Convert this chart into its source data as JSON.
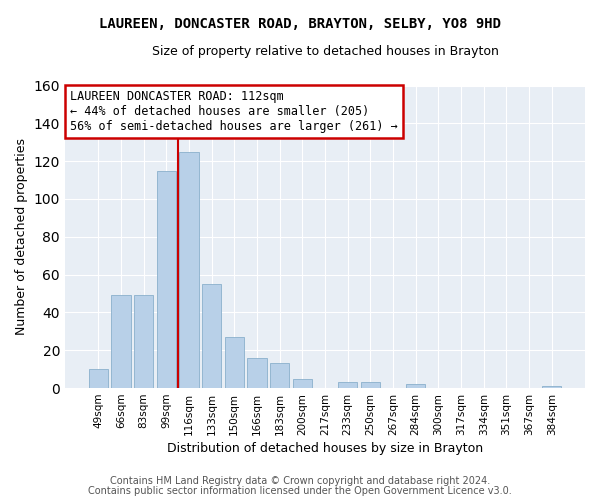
{
  "title": "LAUREEN, DONCASTER ROAD, BRAYTON, SELBY, YO8 9HD",
  "subtitle": "Size of property relative to detached houses in Brayton",
  "xlabel": "Distribution of detached houses by size in Brayton",
  "ylabel": "Number of detached properties",
  "bar_labels": [
    "49sqm",
    "66sqm",
    "83sqm",
    "99sqm",
    "116sqm",
    "133sqm",
    "150sqm",
    "166sqm",
    "183sqm",
    "200sqm",
    "217sqm",
    "233sqm",
    "250sqm",
    "267sqm",
    "284sqm",
    "300sqm",
    "317sqm",
    "334sqm",
    "351sqm",
    "367sqm",
    "384sqm"
  ],
  "bar_values": [
    10,
    49,
    49,
    115,
    125,
    55,
    27,
    16,
    13,
    5,
    0,
    3,
    3,
    0,
    2,
    0,
    0,
    0,
    0,
    0,
    1
  ],
  "bar_color": "#b8d0e8",
  "bar_edge_color": "#8ab0cc",
  "reference_line_x": 3.5,
  "reference_line_color": "#cc0000",
  "annotation_title": "LAUREEN DONCASTER ROAD: 112sqm",
  "annotation_line1": "← 44% of detached houses are smaller (205)",
  "annotation_line2": "56% of semi-detached houses are larger (261) →",
  "annotation_box_color": "#ffffff",
  "annotation_box_edge_color": "#cc0000",
  "ylim": [
    0,
    160
  ],
  "yticks": [
    0,
    20,
    40,
    60,
    80,
    100,
    120,
    140,
    160
  ],
  "footer1": "Contains HM Land Registry data © Crown copyright and database right 2024.",
  "footer2": "Contains public sector information licensed under the Open Government Licence v3.0.",
  "background_color": "#ffffff",
  "plot_background_color": "#e8eef5",
  "grid_color": "#ffffff",
  "title_fontsize": 10,
  "subtitle_fontsize": 9,
  "axis_label_fontsize": 9,
  "tick_fontsize": 7.5,
  "annotation_fontsize": 8.5,
  "footer_fontsize": 7
}
